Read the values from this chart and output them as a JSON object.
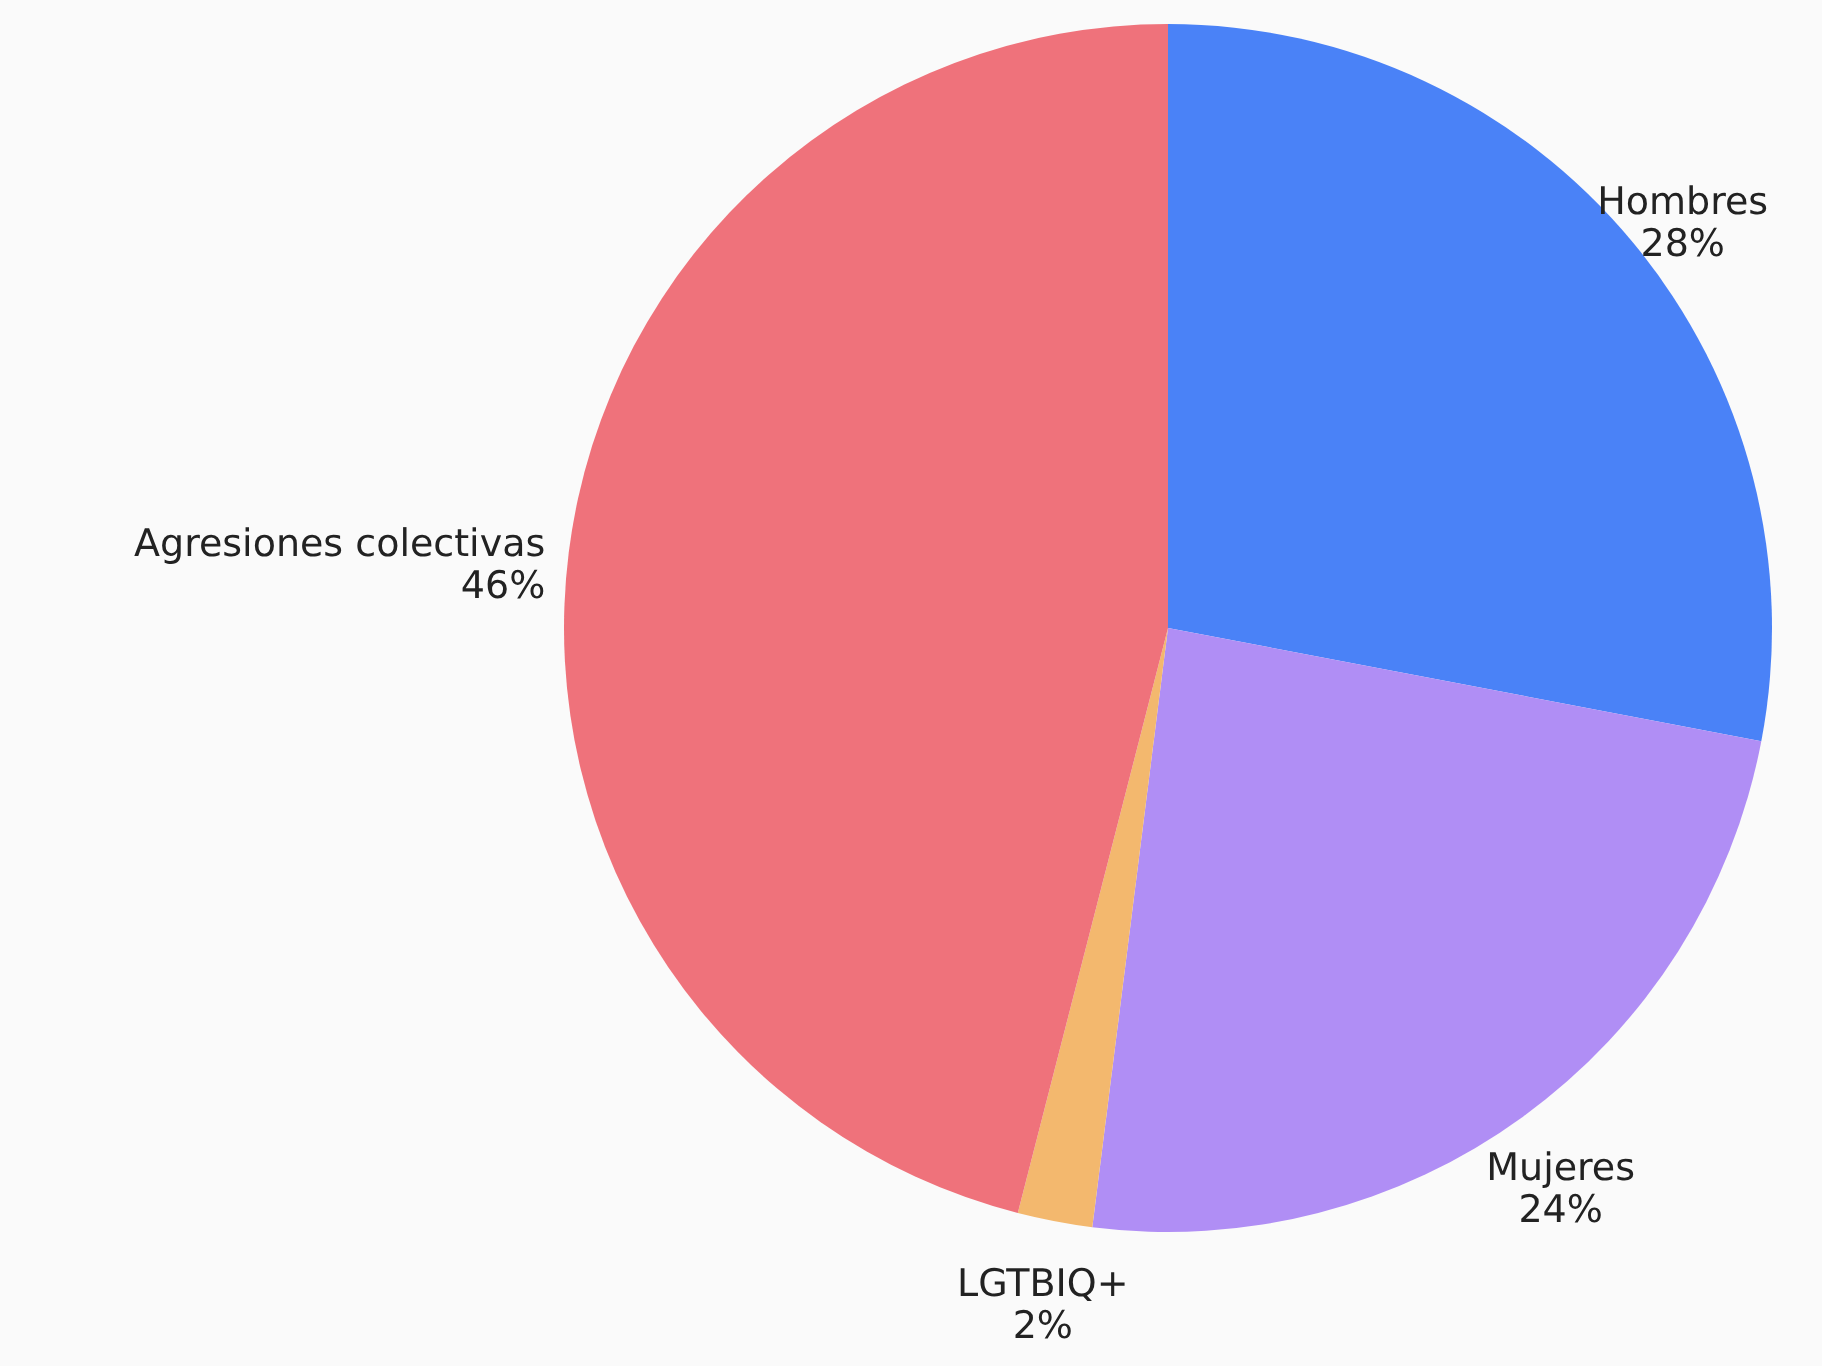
{
  "chart_data": {
    "type": "pie",
    "categories": [
      "Hombres",
      "Mujeres",
      "LGTBIQ+",
      "Agresiones colectivas"
    ],
    "values": [
      28,
      24,
      2,
      46
    ],
    "colors": [
      "#4a82f7",
      "#b08ef5",
      "#f3b86e",
      "#ef727b"
    ],
    "value_labels": [
      "28%",
      "24%",
      "2%",
      "46%"
    ]
  }
}
